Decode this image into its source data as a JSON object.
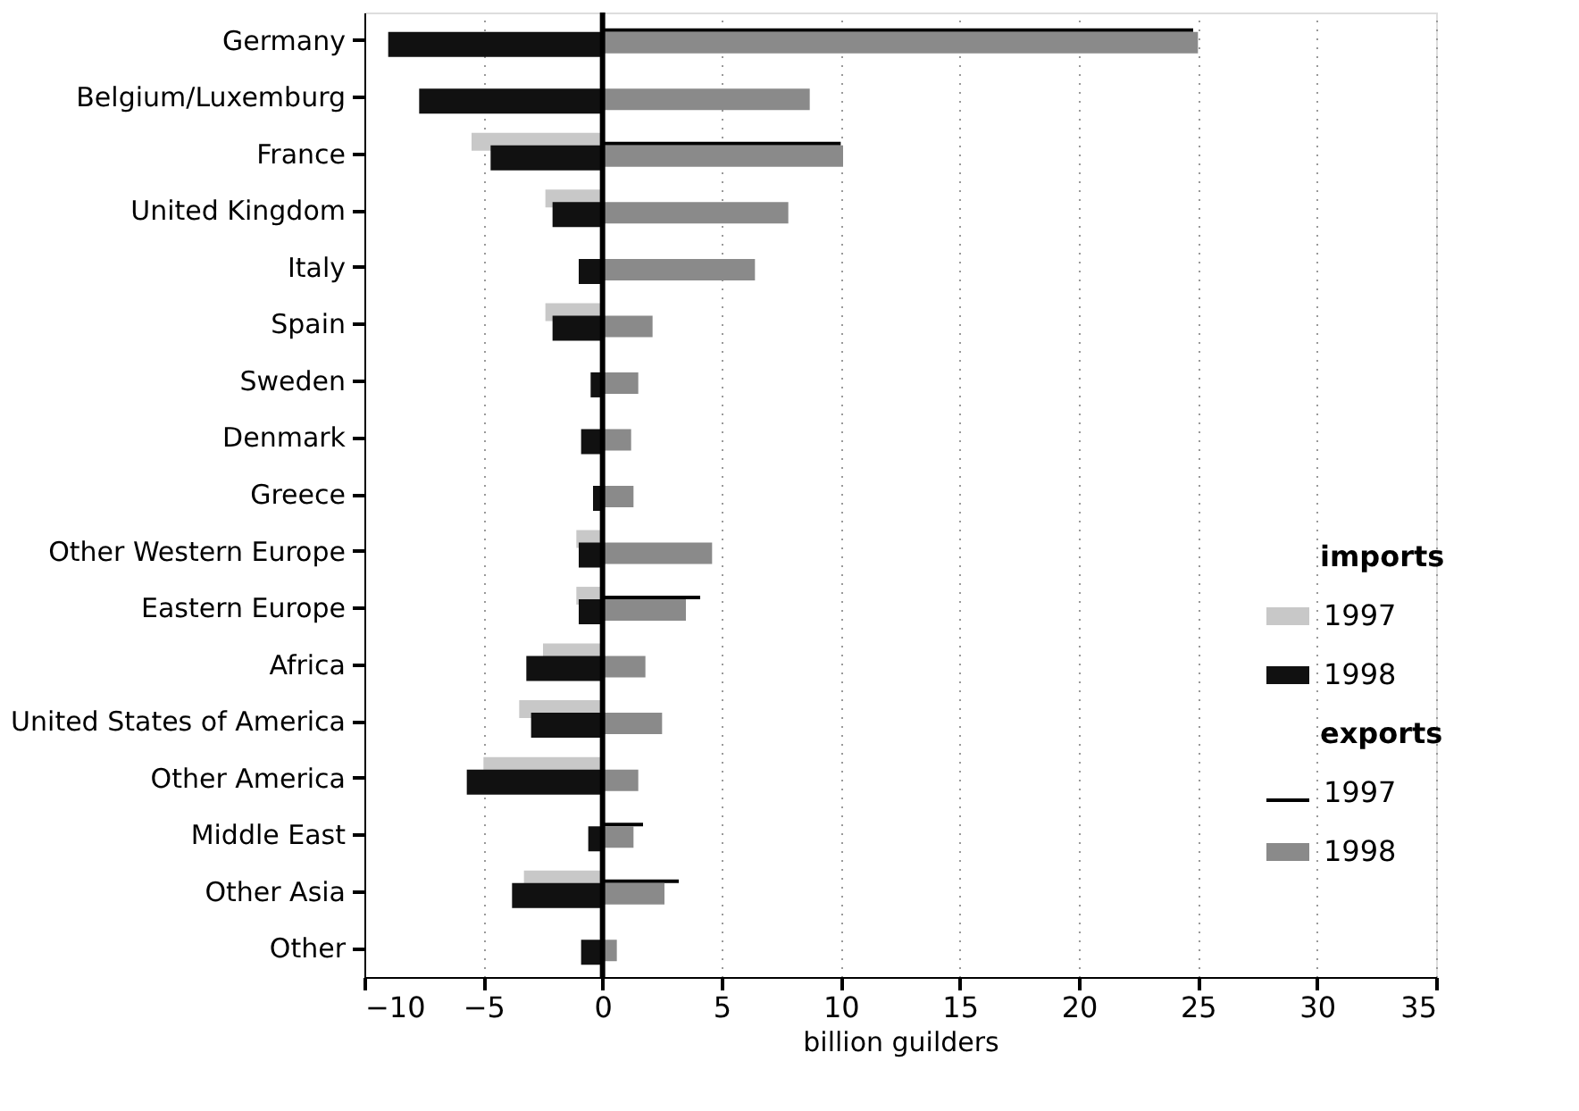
{
  "chart_data": {
    "type": "bar",
    "orientation": "horizontal",
    "xlabel": "billion guilders",
    "categories": [
      "Germany",
      "Belgium/Luxemburg",
      "France",
      "United Kingdom",
      "Italy",
      "Spain",
      "Sweden",
      "Denmark",
      "Greece",
      "Other Western Europe",
      "Eastern Europe",
      "Africa",
      "United States of America",
      "Other America",
      "Middle East",
      "Other Asia",
      "Other"
    ],
    "series": [
      {
        "name": "1997",
        "color": "#c8c8c8",
        "values": [
          null,
          null,
          -5.5,
          -2.4,
          null,
          -2.4,
          null,
          null,
          null,
          -1.1,
          -1.1,
          -2.5,
          -3.5,
          -5.0,
          null,
          -3.3,
          null
        ]
      },
      {
        "name": "1998",
        "color": "#111111",
        "values": [
          -9.0,
          -7.7,
          -4.7,
          -2.1,
          -1.0,
          -2.1,
          -0.5,
          -0.9,
          -0.4,
          -1.0,
          -1.0,
          -3.2,
          -3.0,
          -5.7,
          -0.6,
          -3.8,
          -0.9
        ]
      },
      {
        "name": "1997",
        "color": "#000000",
        "values": [
          24.8,
          null,
          10.0,
          null,
          null,
          null,
          null,
          null,
          null,
          null,
          4.1,
          null,
          null,
          null,
          1.7,
          3.2,
          null
        ]
      },
      {
        "name": "1998",
        "color": "#8a8a8a",
        "values": [
          25.0,
          8.7,
          10.1,
          7.8,
          6.4,
          2.1,
          1.5,
          1.2,
          1.3,
          4.6,
          3.5,
          1.8,
          2.5,
          1.5,
          1.3,
          2.6,
          0.6
        ]
      }
    ],
    "annotations": [
      "imports",
      "exports"
    ],
    "xlim": [
      -10,
      35
    ],
    "xticks": [
      -10,
      -5,
      0,
      5,
      10,
      15,
      20,
      25,
      30,
      35
    ],
    "ref_lines": [
      {
        "axis": "x",
        "value": 0,
        "color": "#000000"
      }
    ],
    "grid": "x",
    "legend": "right"
  }
}
